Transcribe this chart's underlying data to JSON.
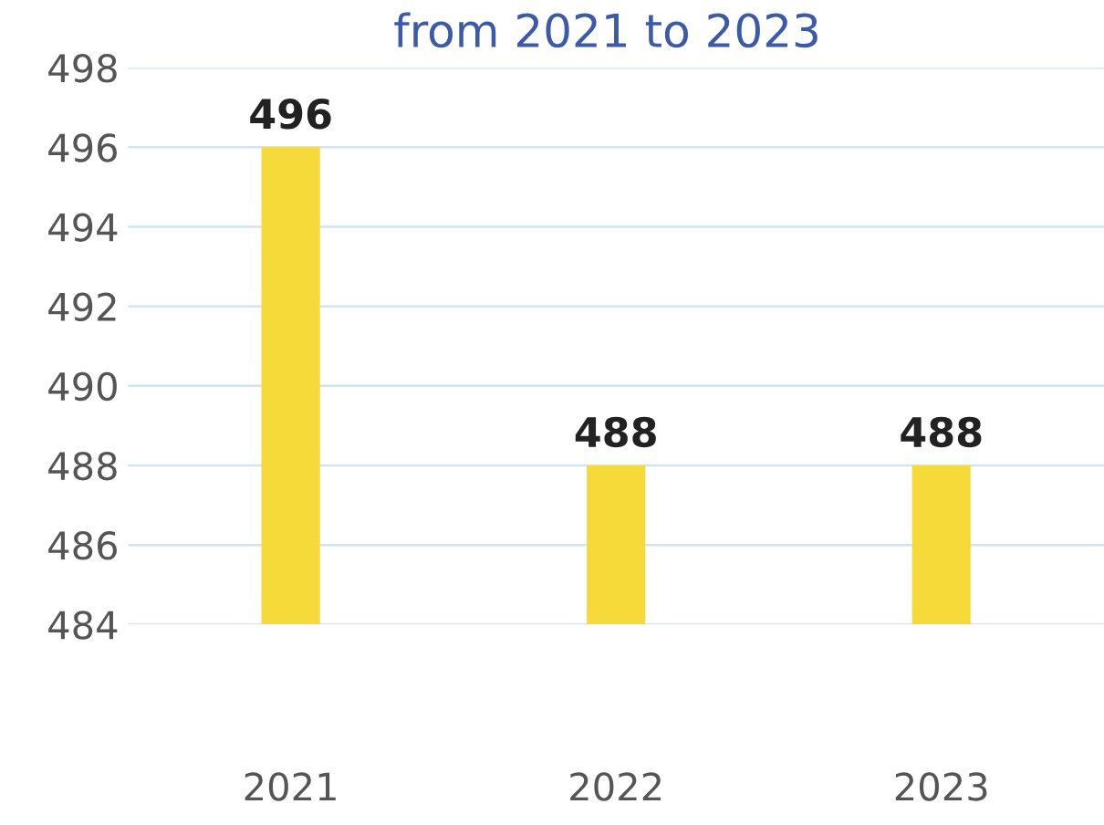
{
  "chart_data": {
    "type": "bar",
    "title": "from 2021 to 2023",
    "categories": [
      "2021",
      "2022",
      "2023"
    ],
    "values": [
      496,
      488,
      488
    ],
    "color": "#f5da3a",
    "ylim": [
      484,
      498
    ],
    "yticks": [
      484,
      486,
      488,
      490,
      492,
      494,
      496,
      498
    ],
    "grid": "y",
    "data_labels": true
  }
}
